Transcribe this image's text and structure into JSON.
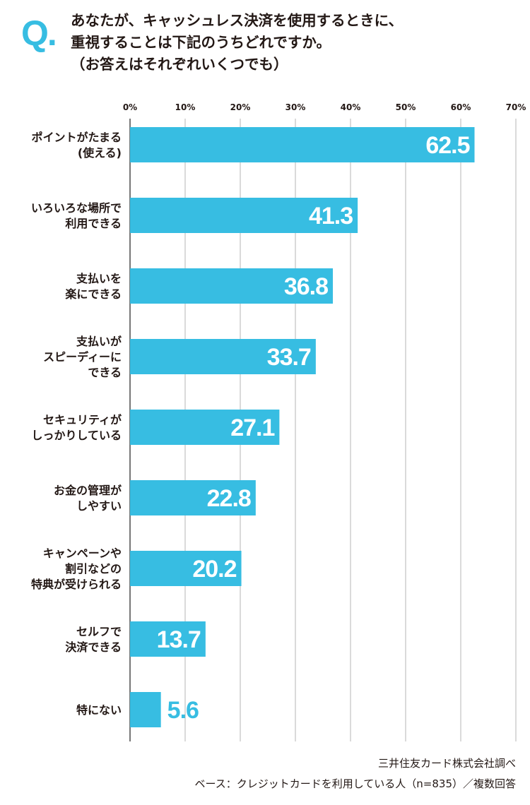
{
  "question": {
    "mark": "Q.",
    "lines": [
      "あなたが、キャッシュレス決済を使用するときに、",
      "重視することは下記のうちどれですか。",
      "（お答えはそれぞれいくつでも）"
    ]
  },
  "chart_data": {
    "type": "bar",
    "orientation": "horizontal",
    "xlim": [
      0,
      70
    ],
    "ticks": [
      "0%",
      "10%",
      "20%",
      "30%",
      "40%",
      "50%",
      "60%",
      "70%"
    ],
    "grid": true,
    "bar_color": "#37bde2",
    "categories": [
      [
        "ポイントがたまる",
        "(使える)"
      ],
      [
        "いろいろな場所で",
        "利用できる"
      ],
      [
        "支払いを",
        "楽にできる"
      ],
      [
        "支払いが",
        "スピーディーに",
        "できる"
      ],
      [
        "セキュリティが",
        "しっかりしている"
      ],
      [
        "お金の管理が",
        "しやすい"
      ],
      [
        "キャンペーンや",
        "割引などの",
        "特典が受けられる"
      ],
      [
        "セルフで",
        "決済できる"
      ],
      [
        "特にない"
      ]
    ],
    "values": [
      62.5,
      41.3,
      36.8,
      33.7,
      27.1,
      22.8,
      20.2,
      13.7,
      5.6
    ],
    "value_labels": [
      "62.5",
      "41.3",
      "36.8",
      "33.7",
      "27.1",
      "22.8",
      "20.2",
      "13.7",
      "5.6"
    ]
  },
  "footer": {
    "source": "三井住友カード株式会社調べ",
    "base": "ベース：クレジットカードを利用している人（n=835）／複数回答"
  }
}
